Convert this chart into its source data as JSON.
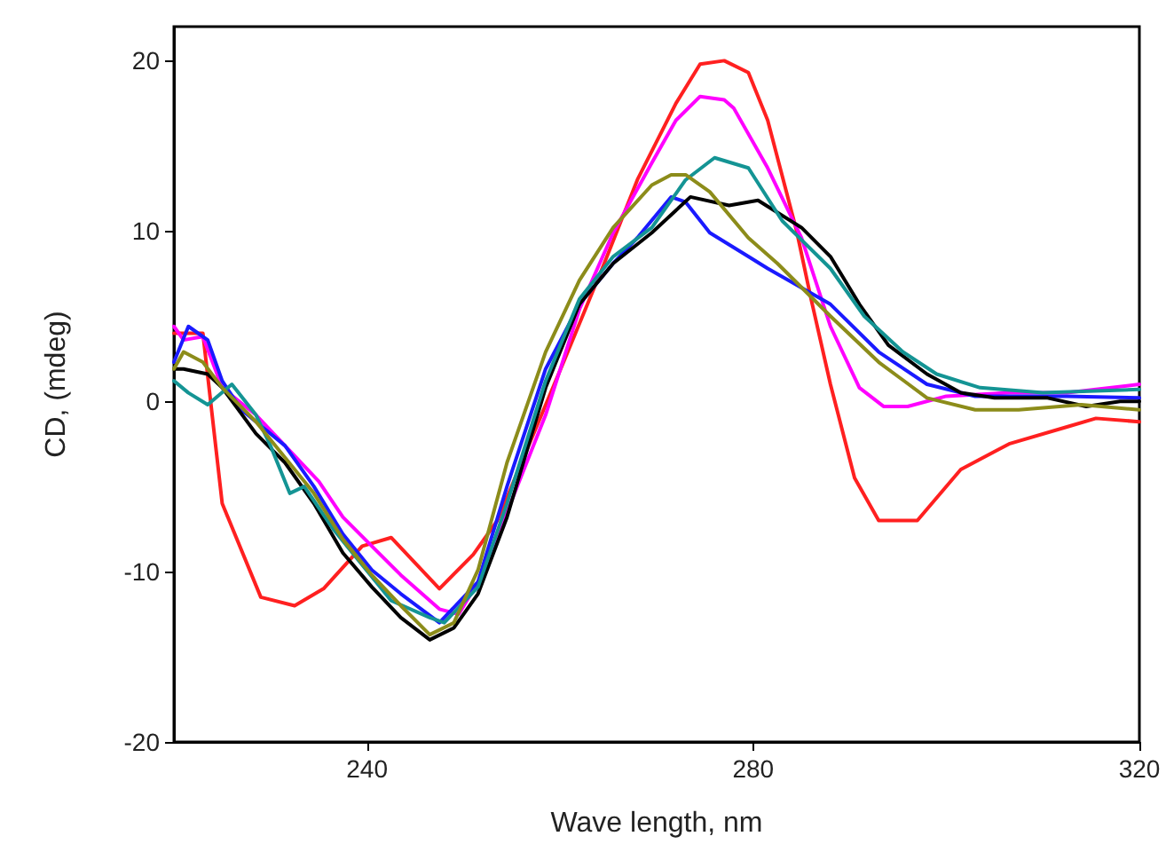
{
  "chart_data": {
    "type": "line",
    "xlabel": "Wave length, nm",
    "ylabel": "CD, (mdeg)",
    "xlim": [
      220,
      320
    ],
    "ylim": [
      -20,
      22
    ],
    "xticks": [
      240,
      280,
      320
    ],
    "yticks": [
      -20,
      -10,
      0,
      10,
      20
    ],
    "grid": false,
    "marker": "none",
    "line_style": "solid",
    "series": [
      {
        "color": "#ff2020",
        "x": [
          220,
          223,
          225,
          229,
          232.5,
          235.5,
          239.5,
          242.5,
          247.5,
          251,
          253.5,
          260.5,
          264.5,
          268,
          272,
          274.5,
          277,
          279.5,
          281.5,
          284.5,
          286,
          288,
          290.5,
          293,
          294.5,
          297,
          301.5,
          306.5,
          312.5,
          315.5,
          320
        ],
        "values": [
          4,
          4,
          -6,
          -11.5,
          -12,
          -11,
          -8.5,
          -8,
          -11,
          -9,
          -7,
          2.5,
          8,
          13,
          17.5,
          19.8,
          20,
          19.3,
          16.5,
          10,
          6,
          1,
          -4.5,
          -7,
          -7,
          -7,
          -4,
          -2.5,
          -1.5,
          -1,
          -1.2
        ]
      },
      {
        "color": "#ff00ff",
        "x": [
          220,
          221,
          223,
          225,
          228.5,
          231.5,
          235,
          237.5,
          240.5,
          243.5,
          247.5,
          249.5,
          251.5,
          254.5,
          258.5,
          262,
          265.5,
          269.5,
          272,
          274.5,
          277,
          278,
          281.5,
          285,
          288,
          291,
          293.5,
          296,
          300,
          306.5,
          312.5,
          320
        ],
        "values": [
          4.4,
          3.6,
          3.8,
          0.8,
          -0.8,
          -2.6,
          -4.7,
          -6.8,
          -8.5,
          -10.2,
          -12.2,
          -12.5,
          -10.6,
          -6.5,
          -0.8,
          5.4,
          9.9,
          14,
          16.5,
          17.9,
          17.7,
          17.2,
          13.7,
          9.6,
          4.4,
          0.8,
          -0.3,
          -0.3,
          0.3,
          0.5,
          0.5,
          1
        ]
      },
      {
        "color": "#1a1aff",
        "x": [
          220,
          221.5,
          223.5,
          225,
          227,
          231.5,
          234.5,
          237.5,
          240.5,
          243.5,
          247.5,
          251.5,
          254.5,
          258.5,
          262,
          265.5,
          268,
          271.5,
          273,
          275.5,
          279.5,
          281.5,
          288,
          293,
          298,
          303,
          312.5,
          320
        ],
        "values": [
          2.3,
          4.4,
          3.6,
          1.2,
          -0.5,
          -2.6,
          -5,
          -7.8,
          -9.9,
          -11.3,
          -13,
          -10.6,
          -5,
          1.9,
          5.7,
          8.1,
          9.6,
          12,
          11.7,
          9.9,
          8.5,
          7.8,
          5.7,
          2.9,
          1,
          0.3,
          0.3,
          0.2
        ]
      },
      {
        "color": "#000000",
        "x": [
          220,
          221,
          223.5,
          225,
          228.5,
          231.5,
          234.5,
          237.5,
          240.5,
          243.5,
          246.5,
          249,
          251.5,
          254.5,
          258.5,
          262,
          265.5,
          269.5,
          273.5,
          277.5,
          280.5,
          285,
          288,
          291,
          294,
          298,
          301.5,
          305,
          310.5,
          314.5,
          318,
          320
        ],
        "values": [
          1.9,
          1.9,
          1.6,
          0.8,
          -1.9,
          -3.6,
          -6,
          -8.9,
          -10.9,
          -12.7,
          -14,
          -13.3,
          -11.3,
          -6.8,
          0.8,
          5.7,
          8.1,
          9.9,
          12,
          11.5,
          11.8,
          10.2,
          8.5,
          5.7,
          3.3,
          1.6,
          0.5,
          0.2,
          0.2,
          -0.3,
          0,
          0
        ]
      },
      {
        "color": "#149494",
        "x": [
          220,
          221.5,
          223.5,
          226,
          228.5,
          230,
          232,
          233.5,
          236.5,
          239.5,
          242.5,
          246.5,
          248,
          251.5,
          254.5,
          258.5,
          262,
          265.5,
          269.5,
          273,
          276,
          279.5,
          283,
          288,
          291.5,
          295.5,
          299,
          303.5,
          310,
          320
        ],
        "values": [
          1.2,
          0.5,
          -0.2,
          1,
          -0.8,
          -2.6,
          -5.4,
          -5,
          -7.5,
          -9.6,
          -11.7,
          -12.7,
          -13,
          -10.9,
          -6,
          1.2,
          6,
          8.5,
          10.2,
          13,
          14.3,
          13.7,
          10.6,
          7.8,
          5,
          2.9,
          1.6,
          0.8,
          0.5,
          0.7
        ]
      },
      {
        "color": "#8c8c1a",
        "x": [
          220,
          221,
          223,
          225,
          228.5,
          231.5,
          234.5,
          237.5,
          240.5,
          243.5,
          246.5,
          249,
          251.5,
          254.5,
          258.5,
          262,
          265.5,
          269.5,
          271.5,
          273,
          275.5,
          279.5,
          282.5,
          288,
          293,
          298,
          303,
          307.5,
          314,
          320
        ],
        "values": [
          1.9,
          2.9,
          2.3,
          0.8,
          -1.2,
          -3.3,
          -5.4,
          -8.1,
          -10.2,
          -12,
          -13.7,
          -13,
          -9.9,
          -3.6,
          2.9,
          7.1,
          10.2,
          12.7,
          13.3,
          13.3,
          12.3,
          9.6,
          8.1,
          5,
          2.3,
          0.2,
          -0.5,
          -0.5,
          -0.2,
          -0.5
        ]
      }
    ]
  }
}
